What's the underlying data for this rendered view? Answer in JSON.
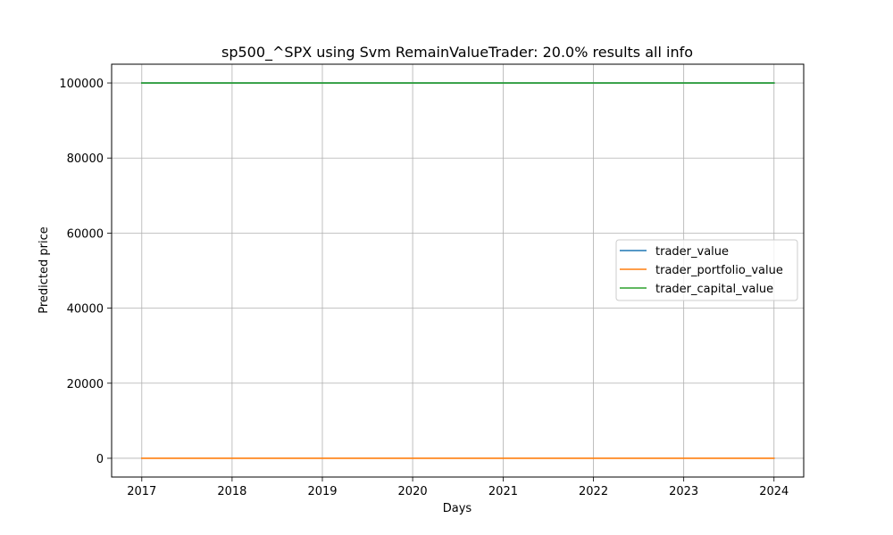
{
  "chart_data": {
    "type": "line",
    "title": "sp500_^SPX using Svm RemainValueTrader: 20.0% results all info",
    "xlabel": "Days",
    "ylabel": "Predicted price",
    "x": [
      "2017-01-01",
      "2018-01-01",
      "2019-01-01",
      "2020-01-01",
      "2021-01-01",
      "2022-01-01",
      "2023-01-01",
      "2024-01-01"
    ],
    "xlim": [
      "2016-09-01",
      "2024-04-30"
    ],
    "ylim": [
      -5000,
      105000
    ],
    "xticks": [
      "2017",
      "2018",
      "2019",
      "2020",
      "2021",
      "2022",
      "2023",
      "2024"
    ],
    "yticks": [
      0,
      20000,
      40000,
      60000,
      80000,
      100000
    ],
    "grid": true,
    "legend_position": "center-right",
    "series": [
      {
        "name": "trader_value",
        "color": "#1f77b4",
        "values": [
          100000,
          100000,
          100000,
          100000,
          100000,
          100000,
          100000,
          100000
        ]
      },
      {
        "name": "trader_portfolio_value",
        "color": "#ff7f0e",
        "values": [
          0,
          0,
          0,
          0,
          0,
          0,
          0,
          0
        ]
      },
      {
        "name": "trader_capital_value",
        "color": "#2ca02c",
        "values": [
          100000,
          100000,
          100000,
          100000,
          100000,
          100000,
          100000,
          100000
        ]
      }
    ]
  }
}
